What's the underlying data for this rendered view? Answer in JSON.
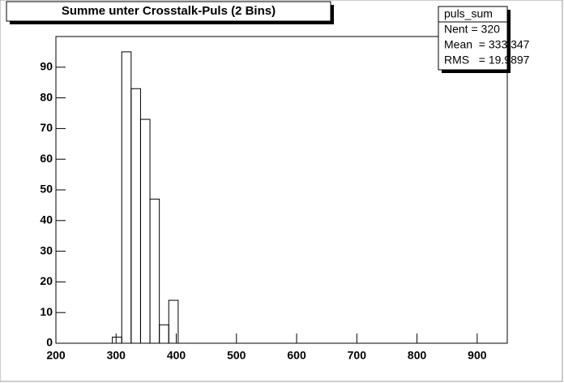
{
  "chart_data": {
    "type": "histogram",
    "title": "Summe unter Crosstalk-Puls (2 Bins)",
    "bins": [
      293.75,
      309.375,
      325,
      340.625,
      356.25,
      371.875,
      387.5,
      403.125
    ],
    "values": [
      2,
      95,
      83,
      73,
      47,
      6,
      14
    ],
    "color": "#000000",
    "xlim": [
      200,
      950
    ],
    "xticks": [
      200,
      300,
      400,
      500,
      600,
      700,
      800,
      900
    ],
    "ylim": [
      0,
      100
    ],
    "yticks": [
      0,
      10,
      20,
      30,
      40,
      50,
      60,
      70,
      80,
      90
    ],
    "grid": false,
    "stats": {
      "title": "puls_sum",
      "lines": [
        "Nent = 320",
        "Mean  = 333.347",
        "RMS   = 19.9897"
      ]
    }
  }
}
